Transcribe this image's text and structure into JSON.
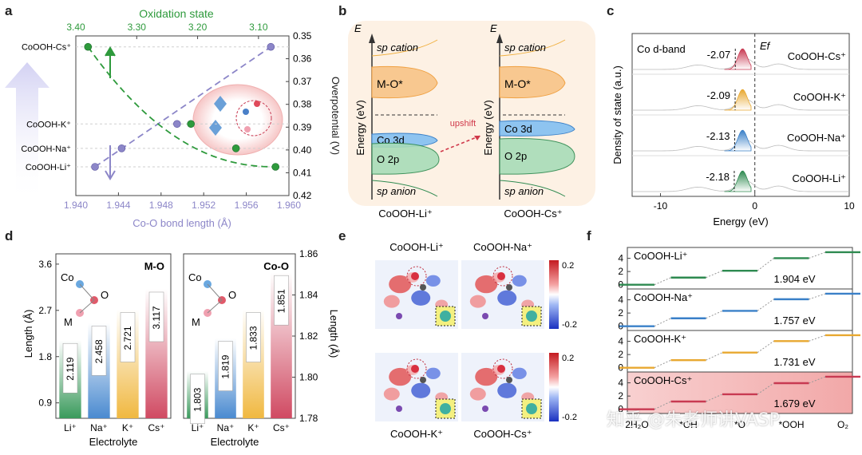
{
  "panel_labels": [
    "a",
    "b",
    "c",
    "d",
    "e",
    "f"
  ],
  "chart_data": [
    {
      "id": "a",
      "type": "scatter",
      "top_axis_label": "Oxidation state",
      "top_ticks": [
        "3.40",
        "3.30",
        "3.20",
        "3.10"
      ],
      "top_xlim": [
        3.4,
        3.05
      ],
      "xlabel": "Co-O bond length (Å)",
      "x_ticks": [
        "1.940",
        "1.944",
        "1.948",
        "1.952",
        "1.956",
        "1.960"
      ],
      "xlim": [
        1.94,
        1.96
      ],
      "ylabel": "Overpotential (V)",
      "y_ticks": [
        "0.35",
        "0.36",
        "0.37",
        "0.38",
        "0.39",
        "0.40",
        "0.41",
        "0.42"
      ],
      "ylim": [
        0.35,
        0.42
      ],
      "categories": [
        "CoOOH-Cs⁺",
        "CoOOH-K⁺",
        "CoOOH-Na⁺",
        "CoOOH-Li⁺"
      ],
      "series": [
        {
          "values": [
            {
              "x": 1.9583,
              "y": 0.3548
            },
            {
              "x": 1.9495,
              "y": 0.3886
            },
            {
              "x": 1.9443,
              "y": 0.3993
            },
            {
              "x": 1.9418,
              "y": 0.4074
            }
          ],
          "color": "#8c86c8"
        },
        {
          "values": [
            {
              "x": 3.38,
              "y": 0.3548
            },
            {
              "x": 3.211,
              "y": 0.3886
            },
            {
              "x": 3.137,
              "y": 0.3993
            },
            {
              "x": 3.072,
              "y": 0.4074
            }
          ],
          "color": "#2e9a3c"
        }
      ]
    },
    {
      "id": "b",
      "type": "diagram",
      "axis_symbol": "E",
      "ylabel": "Energy (eV)",
      "bands": [
        "sp cation",
        "M-O*",
        "Co 3d",
        "O 2p",
        "sp anion"
      ],
      "arrow_label": "upshift",
      "left_title": "CoOOH-Li⁺",
      "right_title": "CoOOH-Cs⁺"
    },
    {
      "id": "c",
      "type": "line",
      "legend": "Co d-band",
      "fermi": "Ef",
      "xlabel": "Energy (eV)",
      "ylabel": "Density of state (a.u.)",
      "x_ticks": [
        "-10",
        "0",
        "10"
      ],
      "xlim": [
        -13,
        10
      ],
      "series": [
        {
          "name": "CoOOH-Cs⁺",
          "center": -2.07,
          "center_label": "-2.07",
          "color": "#c83a52"
        },
        {
          "name": "CoOOH-K⁺",
          "center": -2.09,
          "center_label": "-2.09",
          "color": "#e8a830"
        },
        {
          "name": "CoOOH-Na⁺",
          "center": -2.13,
          "center_label": "-2.13",
          "color": "#3a80c8"
        },
        {
          "name": "CoOOH-Li⁺",
          "center": -2.18,
          "center_label": "-2.18",
          "color": "#2e8a50"
        }
      ]
    },
    {
      "id": "d1",
      "type": "bar",
      "title": "M-O",
      "ylabel": "Length (Å)",
      "xlabel": "Electrolyte",
      "categories": [
        "Li⁺",
        "Na⁺",
        "K⁺",
        "Cs⁺"
      ],
      "values": [
        2.119,
        2.458,
        2.721,
        3.117
      ],
      "value_labels": [
        "2.119",
        "2.458",
        "2.721",
        "3.117"
      ],
      "y_ticks": [
        "0.9",
        "1.8",
        "2.7",
        "3.6"
      ],
      "ylim": [
        0.6,
        3.8
      ],
      "atoms": [
        "Co",
        "O",
        "M"
      ],
      "colors": [
        "#3a9a5c",
        "#4a8ad0",
        "#f0b840",
        "#d04a62"
      ]
    },
    {
      "id": "d2",
      "type": "bar",
      "title": "Co-O",
      "ylabel": "Length (Å)",
      "xlabel": "Electrolyte",
      "categories": [
        "Li⁺",
        "Na⁺",
        "K⁺",
        "Cs⁺"
      ],
      "values": [
        1.803,
        1.819,
        1.833,
        1.851
      ],
      "value_labels": [
        "1.803",
        "1.819",
        "1.833",
        "1.851"
      ],
      "y_ticks": [
        "1.78",
        "1.80",
        "1.82",
        "1.84",
        "1.86"
      ],
      "ylim": [
        1.78,
        1.86
      ],
      "atoms": [
        "Co",
        "O",
        "M"
      ],
      "colors": [
        "#3a9a5c",
        "#4a8ad0",
        "#f0b840",
        "#d04a62"
      ]
    },
    {
      "id": "e",
      "type": "heatmap",
      "titles": [
        "CoOOH-Li⁺",
        "CoOOH-Na⁺",
        "CoOOH-K⁺",
        "CoOOH-Cs⁺"
      ],
      "colorbar_ticks": [
        "0.2",
        "-0.2"
      ],
      "colorbar_range": [
        -0.2,
        0.2
      ]
    },
    {
      "id": "f",
      "type": "line",
      "ylabel": "ΔG (eV)",
      "categories": [
        "2H₂O",
        "*OH",
        "*O",
        "*OOH",
        "O₂"
      ],
      "y_ticks": [
        "0",
        "2",
        "4"
      ],
      "ylim": [
        -0.4,
        5.4
      ],
      "series": [
        {
          "name": "CoOOH-Li⁺",
          "values": [
            0,
            1.08,
            2.11,
            4.014,
            4.92
          ],
          "barrier": "1.904 eV",
          "color": "#2e8a50"
        },
        {
          "name": "CoOOH-Na⁺",
          "values": [
            0,
            1.2,
            2.33,
            4.087,
            4.92
          ],
          "barrier": "1.757 eV",
          "color": "#3a80c8"
        },
        {
          "name": "CoOOH-K⁺",
          "values": [
            0,
            1.15,
            2.3,
            4.031,
            4.92
          ],
          "barrier": "1.731 eV",
          "color": "#e8a830"
        },
        {
          "name": "CoOOH-Cs⁺",
          "values": [
            0,
            1.17,
            2.27,
            3.949,
            4.92
          ],
          "barrier": "1.679 eV",
          "color": "#c83a52"
        }
      ]
    }
  ],
  "watermark": "知乎 @朱老师讲VASP"
}
